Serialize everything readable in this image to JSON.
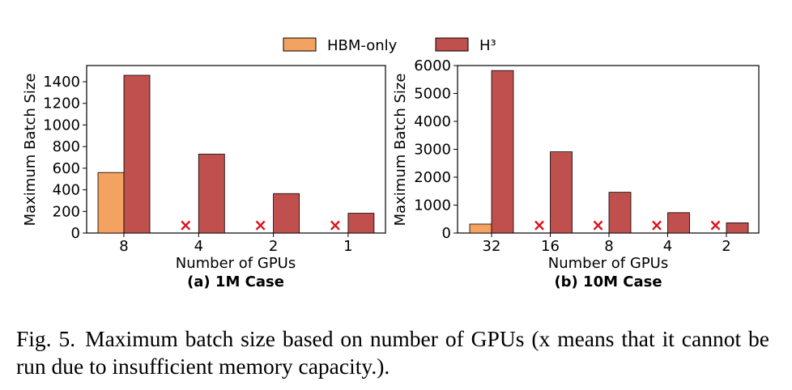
{
  "legend": [
    {
      "name": "HBM-only",
      "color": "#F4A261"
    },
    {
      "name": "H³",
      "color": "#C0504D"
    }
  ],
  "colors": {
    "hbm": "#F4A261",
    "h3": "#C0504D",
    "infeasible_marker": "#E0101C",
    "edge": "#000000"
  },
  "infeasible_marker_glyph": "×",
  "caption": {
    "label": "Fig. 5.",
    "text": "Maximum batch size based on number of GPUs (x means that it cannot be run due to insufficient memory capacity.)."
  },
  "chart_data": [
    {
      "type": "bar",
      "subtitle": "(a) 1M Case",
      "xlabel": "Number of GPUs",
      "ylabel": "Maximum Batch Size",
      "categories": [
        "8",
        "4",
        "2",
        "1"
      ],
      "ylim": [
        0,
        1550
      ],
      "yticks": [
        0,
        200,
        400,
        600,
        800,
        1000,
        1200,
        1400
      ],
      "series": [
        {
          "name": "HBM-only",
          "values": [
            560,
            null,
            null,
            null
          ]
        },
        {
          "name": "H³",
          "values": [
            1460,
            730,
            365,
            183
          ]
        }
      ],
      "grid": false
    },
    {
      "type": "bar",
      "subtitle": "(b) 10M Case",
      "xlabel": "Number of GPUs",
      "ylabel": "Maximum Batch Size",
      "categories": [
        "32",
        "16",
        "8",
        "4",
        "2"
      ],
      "ylim": [
        0,
        6000
      ],
      "yticks": [
        0,
        1000,
        2000,
        3000,
        4000,
        5000,
        6000
      ],
      "series": [
        {
          "name": "HBM-only",
          "values": [
            320,
            null,
            null,
            null,
            null
          ]
        },
        {
          "name": "H³",
          "values": [
            5820,
            2910,
            1460,
            730,
            365
          ]
        }
      ],
      "grid": false
    }
  ]
}
